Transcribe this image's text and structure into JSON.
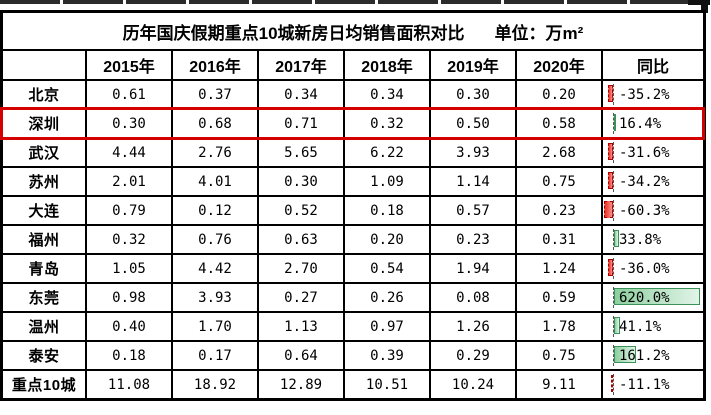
{
  "title": {
    "main": "历年国庆假期重点10城新房日均销售面积对比",
    "unit": "单位：万m²"
  },
  "table": {
    "corner": "",
    "columns": [
      "2015年",
      "2016年",
      "2017年",
      "2018年",
      "2019年",
      "2020年",
      "同比"
    ],
    "rows": [
      {
        "label": "北京",
        "values": [
          "0.61",
          "0.37",
          "0.34",
          "0.34",
          "0.30",
          "0.20"
        ],
        "yoy": "-35.2%",
        "yoy_value": -35.2
      },
      {
        "label": "深圳",
        "values": [
          "0.30",
          "0.68",
          "0.71",
          "0.32",
          "0.50",
          "0.58"
        ],
        "yoy": "16.4%",
        "yoy_value": 16.4,
        "highlighted": true
      },
      {
        "label": "武汉",
        "values": [
          "4.44",
          "2.76",
          "5.65",
          "6.22",
          "3.93",
          "2.68"
        ],
        "yoy": "-31.6%",
        "yoy_value": -31.6
      },
      {
        "label": "苏州",
        "values": [
          "2.01",
          "4.01",
          "0.30",
          "1.09",
          "1.14",
          "0.75"
        ],
        "yoy": "-34.2%",
        "yoy_value": -34.2
      },
      {
        "label": "大连",
        "values": [
          "0.79",
          "0.12",
          "0.52",
          "0.18",
          "0.57",
          "0.23"
        ],
        "yoy": "-60.3%",
        "yoy_value": -60.3
      },
      {
        "label": "福州",
        "values": [
          "0.32",
          "0.76",
          "0.63",
          "0.20",
          "0.23",
          "0.31"
        ],
        "yoy": "33.8%",
        "yoy_value": 33.8
      },
      {
        "label": "青岛",
        "values": [
          "1.05",
          "4.42",
          "2.70",
          "0.54",
          "1.94",
          "1.24"
        ],
        "yoy": "-36.0%",
        "yoy_value": -36.0
      },
      {
        "label": "东莞",
        "values": [
          "0.98",
          "3.93",
          "0.27",
          "0.26",
          "0.08",
          "0.59"
        ],
        "yoy": "620.0%",
        "yoy_value": 620.0
      },
      {
        "label": "温州",
        "values": [
          "0.40",
          "1.70",
          "1.13",
          "0.97",
          "1.26",
          "1.78"
        ],
        "yoy": "41.1%",
        "yoy_value": 41.1
      },
      {
        "label": "泰安",
        "values": [
          "0.18",
          "0.17",
          "0.64",
          "0.39",
          "0.29",
          "0.75"
        ],
        "yoy": "161.2%",
        "yoy_value": 161.2
      },
      {
        "label": "重点10城",
        "values": [
          "11.08",
          "18.92",
          "12.89",
          "10.51",
          "10.24",
          "9.11"
        ],
        "yoy": "-11.1%",
        "yoy_value": -11.1
      }
    ]
  },
  "colors": {
    "border": "#000000",
    "highlight_red": "#d40000",
    "negative_bar": "#ee3125",
    "negative_bar_border": "#a80000",
    "positive_bar": "#8ccf9e",
    "positive_bar_border": "#3a915a",
    "background": "#ffffff"
  },
  "chart_data": {
    "type": "table",
    "title": "历年国庆假期重点10城新房日均销售面积对比",
    "unit": "万m²",
    "categories": [
      "2015",
      "2016",
      "2017",
      "2018",
      "2019",
      "2020"
    ],
    "series": [
      {
        "name": "北京",
        "values": [
          0.61,
          0.37,
          0.34,
          0.34,
          0.3,
          0.2
        ],
        "yoy_pct": -35.2
      },
      {
        "name": "深圳",
        "values": [
          0.3,
          0.68,
          0.71,
          0.32,
          0.5,
          0.58
        ],
        "yoy_pct": 16.4
      },
      {
        "name": "武汉",
        "values": [
          4.44,
          2.76,
          5.65,
          6.22,
          3.93,
          2.68
        ],
        "yoy_pct": -31.6
      },
      {
        "name": "苏州",
        "values": [
          2.01,
          4.01,
          0.3,
          1.09,
          1.14,
          0.75
        ],
        "yoy_pct": -34.2
      },
      {
        "name": "大连",
        "values": [
          0.79,
          0.12,
          0.52,
          0.18,
          0.57,
          0.23
        ],
        "yoy_pct": -60.3
      },
      {
        "name": "福州",
        "values": [
          0.32,
          0.76,
          0.63,
          0.2,
          0.23,
          0.31
        ],
        "yoy_pct": 33.8
      },
      {
        "name": "青岛",
        "values": [
          1.05,
          4.42,
          2.7,
          0.54,
          1.94,
          1.24
        ],
        "yoy_pct": -36.0
      },
      {
        "name": "东莞",
        "values": [
          0.98,
          3.93,
          0.27,
          0.26,
          0.08,
          0.59
        ],
        "yoy_pct": 620.0
      },
      {
        "name": "温州",
        "values": [
          0.4,
          1.7,
          1.13,
          0.97,
          1.26,
          1.78
        ],
        "yoy_pct": 41.1
      },
      {
        "name": "泰安",
        "values": [
          0.18,
          0.17,
          0.64,
          0.39,
          0.29,
          0.75
        ],
        "yoy_pct": 161.2
      },
      {
        "name": "重点10城",
        "values": [
          11.08,
          18.92,
          12.89,
          10.51,
          10.24,
          9.11
        ],
        "yoy_pct": -11.1
      }
    ],
    "notes": "深圳 row outlined in red; 同比 column has Excel-style data bars (red = negative, green = positive)"
  }
}
